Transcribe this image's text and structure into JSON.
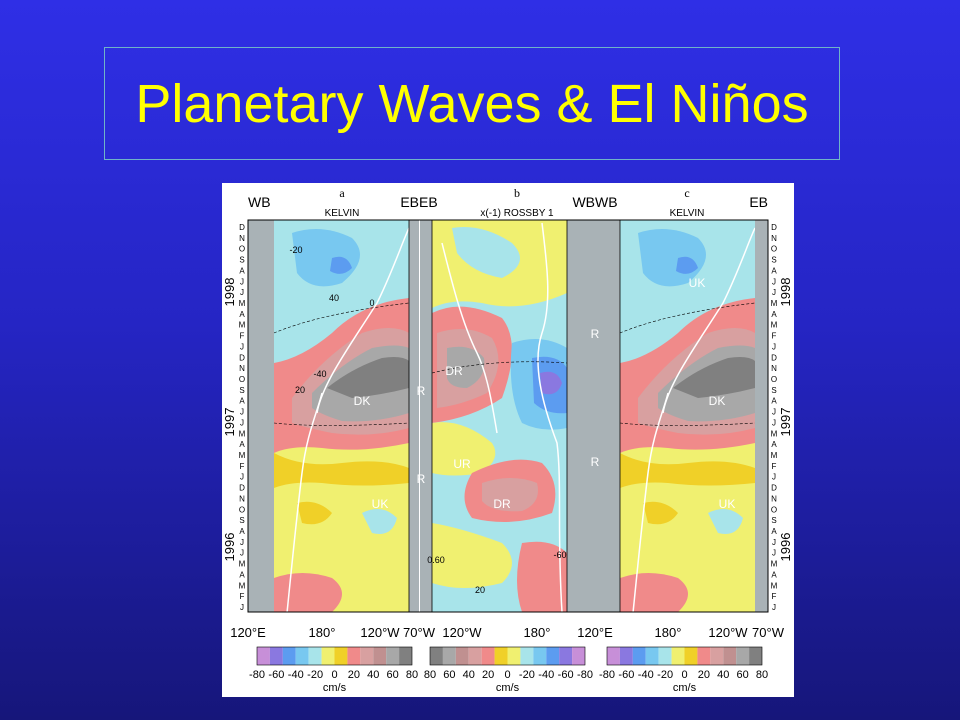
{
  "slide": {
    "title": "Planetary Waves & El Niños"
  },
  "figure": {
    "panels": [
      {
        "letter": "a",
        "wave": "KELVIN",
        "left_label": "WB",
        "right_label": "EB",
        "region_labels": [
          "DK",
          "UK"
        ],
        "x_ticks": [
          "120°E",
          "180°",
          "120°W",
          "70°W"
        ],
        "colorbar_ticks": [
          "-80",
          "-60",
          "-40",
          "-20",
          "0",
          "20",
          "40",
          "60",
          "80"
        ]
      },
      {
        "letter": "b",
        "wave": "x(-1) ROSSBY 1",
        "left_label": "EB",
        "right_label": "WB",
        "region_labels": [
          "DR",
          "UR",
          "DR"
        ],
        "x_ticks": [
          "120°W",
          "180°"
        ],
        "colorbar_ticks": [
          "80",
          "60",
          "40",
          "20",
          "0",
          "-20",
          "-40",
          "-60",
          "-80"
        ]
      },
      {
        "letter": "c",
        "wave": "KELVIN",
        "left_label": "WB",
        "right_label": "EB",
        "region_labels": [
          "UK",
          "DK",
          "UK"
        ],
        "x_ticks": [
          "120°E",
          "180°",
          "120°W",
          "70°W"
        ],
        "colorbar_ticks": [
          "-80",
          "-60",
          "-40",
          "-20",
          "0",
          "20",
          "40",
          "60",
          "80"
        ]
      }
    ],
    "units": "cm/s",
    "years": [
      "1998",
      "1997",
      "1996"
    ],
    "months": [
      "D",
      "N",
      "O",
      "S",
      "A",
      "J",
      "J",
      "M",
      "A",
      "M",
      "F",
      "J",
      "D",
      "N",
      "O",
      "S",
      "A",
      "J",
      "J",
      "M",
      "A",
      "M",
      "F",
      "J",
      "D",
      "N",
      "O",
      "S",
      "A",
      "J",
      "J",
      "M",
      "A",
      "M",
      "F",
      "J"
    ],
    "reflection_marks": [
      "R",
      "R",
      "R",
      "R"
    ],
    "contour_labels": [
      "-20",
      "40",
      "0",
      "20",
      "-40",
      "0.60",
      "-60",
      "20"
    ],
    "colorbar_colors": [
      "#c78fd8",
      "#8a78e0",
      "#5c9cf0",
      "#78c8f0",
      "#a8e4ea",
      "#f0f070",
      "#f0d028",
      "#f08a8a",
      "#d8a0a0",
      "#c09090",
      "#a8a8a8",
      "#808080"
    ]
  }
}
